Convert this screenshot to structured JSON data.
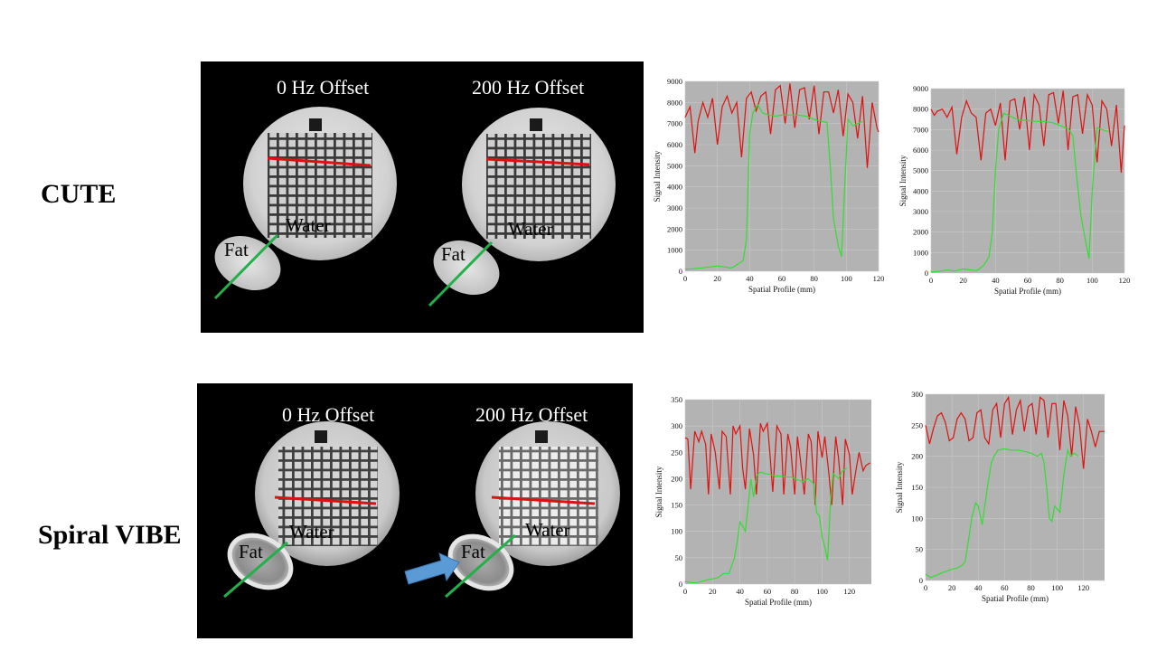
{
  "rows": [
    {
      "label": "CUTE",
      "left_caption": "0 Hz Offset",
      "right_caption": "200 Hz Offset",
      "water_label": "Water",
      "fat_label": "Fat"
    },
    {
      "label": "Spiral VIBE",
      "left_caption": "0 Hz Offset",
      "right_caption": "200 Hz Offset",
      "water_label": "Water",
      "fat_label": "Fat"
    }
  ],
  "colors": {
    "red_profile": "#e01010",
    "green_profile": "#22c522",
    "plot_background": "#b3b3b3",
    "arrow": "#5b9bd5"
  },
  "chart_data": [
    {
      "type": "line",
      "title": "",
      "xlabel": "Spatial Profile (mm)",
      "ylabel": "Signal Intensity",
      "xlim": [
        0,
        120
      ],
      "ylim": [
        0,
        9000
      ],
      "xticks": [
        0,
        20,
        40,
        60,
        80,
        100,
        120
      ],
      "yticks": [
        0,
        1000,
        2000,
        3000,
        4000,
        5000,
        6000,
        7000,
        8000,
        9000
      ],
      "grid": true,
      "series": [
        {
          "name": "red",
          "color": "#e01010",
          "x": [
            0,
            3,
            6,
            8,
            11,
            14,
            17,
            20,
            23,
            26,
            29,
            32,
            35,
            38,
            41,
            44,
            47,
            50,
            53,
            56,
            59,
            62,
            65,
            68,
            71,
            74,
            77,
            80,
            83,
            86,
            89,
            92,
            95,
            98,
            101,
            104,
            107,
            110,
            113,
            116,
            119,
            120
          ],
          "y": [
            7300,
            7800,
            5600,
            7100,
            8000,
            7300,
            8200,
            6000,
            7800,
            8300,
            7500,
            8000,
            5400,
            8200,
            8500,
            7600,
            8300,
            8500,
            6500,
            8600,
            8800,
            7000,
            8900,
            6800,
            8600,
            8700,
            7200,
            8800,
            6500,
            8500,
            8500,
            7500,
            8600,
            6400,
            8400,
            8000,
            6300,
            8300,
            4900,
            8000,
            6800,
            6600
          ]
        },
        {
          "name": "green",
          "color": "#33dd33",
          "x": [
            0,
            5,
            10,
            15,
            20,
            25,
            28,
            30,
            33,
            36,
            38,
            40,
            42,
            45,
            48,
            52,
            56,
            60,
            65,
            70,
            75,
            80,
            85,
            88,
            90,
            92,
            95,
            97,
            99,
            101,
            104,
            107,
            110
          ],
          "y": [
            100,
            120,
            150,
            200,
            250,
            200,
            150,
            200,
            350,
            500,
            1500,
            6500,
            7500,
            7900,
            7500,
            7400,
            7350,
            7400,
            7400,
            7400,
            7350,
            7200,
            7100,
            7050,
            5000,
            2500,
            1200,
            700,
            4000,
            7200,
            6900,
            7000,
            7100
          ]
        }
      ]
    },
    {
      "type": "line",
      "title": "",
      "xlabel": "Spatial Profile (mm)",
      "ylabel": "Signal Intensity",
      "xlim": [
        0,
        120
      ],
      "ylim": [
        0,
        9000
      ],
      "xticks": [
        0,
        20,
        40,
        60,
        80,
        100,
        120
      ],
      "yticks": [
        0,
        1000,
        2000,
        3000,
        4000,
        5000,
        6000,
        7000,
        8000,
        9000
      ],
      "grid": true,
      "series": [
        {
          "name": "red",
          "color": "#e01010",
          "x": [
            0,
            2,
            4,
            7,
            10,
            13,
            16,
            19,
            22,
            25,
            28,
            31,
            34,
            37,
            40,
            43,
            46,
            49,
            52,
            55,
            58,
            61,
            64,
            67,
            70,
            73,
            76,
            79,
            82,
            85,
            88,
            91,
            94,
            97,
            100,
            103,
            106,
            109,
            112,
            115,
            118,
            120
          ],
          "y": [
            8000,
            7700,
            7900,
            8000,
            7600,
            8100,
            5800,
            7600,
            8400,
            7800,
            7600,
            5500,
            7800,
            8000,
            7200,
            8300,
            5500,
            8400,
            8500,
            7000,
            8600,
            6000,
            8700,
            8200,
            6200,
            8700,
            8800,
            7300,
            8900,
            6000,
            8600,
            8700,
            6800,
            8700,
            8200,
            5400,
            8400,
            8000,
            6200,
            8200,
            4900,
            7200
          ]
        },
        {
          "name": "green",
          "color": "#33dd33",
          "x": [
            0,
            5,
            10,
            15,
            20,
            25,
            28,
            30,
            33,
            36,
            38,
            40,
            42,
            45,
            48,
            52,
            56,
            60,
            65,
            70,
            75,
            80,
            85,
            88,
            90,
            93,
            96,
            98,
            100,
            103,
            106,
            110
          ],
          "y": [
            50,
            80,
            150,
            100,
            200,
            150,
            120,
            200,
            400,
            800,
            2000,
            5000,
            7000,
            7800,
            7700,
            7550,
            7450,
            7450,
            7400,
            7400,
            7350,
            7200,
            7050,
            6700,
            5000,
            2800,
            1500,
            700,
            4000,
            7100,
            7000,
            6900
          ]
        }
      ]
    },
    {
      "type": "line",
      "title": "",
      "xlabel": "Spatial Profile (mm)",
      "ylabel": "Signal Intensity",
      "xlim": [
        0,
        136
      ],
      "ylim": [
        0,
        350
      ],
      "xticks": [
        0,
        20,
        40,
        60,
        80,
        100,
        120
      ],
      "yticks": [
        0,
        50,
        100,
        150,
        200,
        250,
        300,
        350
      ],
      "grid": true,
      "series": [
        {
          "name": "red",
          "color": "#e01010",
          "x": [
            0,
            2,
            4,
            7,
            10,
            12,
            15,
            17,
            19,
            22,
            25,
            27,
            30,
            33,
            35,
            37,
            40,
            42,
            44,
            47,
            50,
            52,
            55,
            57,
            60,
            62,
            64,
            67,
            70,
            72,
            75,
            77,
            80,
            82,
            84,
            87,
            90,
            92,
            95,
            97,
            100,
            102,
            105,
            107,
            110,
            112,
            115,
            117,
            120,
            122,
            125,
            127,
            130,
            132,
            135
          ],
          "y": [
            278,
            275,
            180,
            290,
            270,
            290,
            265,
            170,
            285,
            250,
            180,
            290,
            280,
            170,
            300,
            285,
            300,
            220,
            180,
            295,
            245,
            170,
            305,
            290,
            305,
            245,
            175,
            300,
            285,
            170,
            285,
            260,
            170,
            280,
            240,
            170,
            285,
            270,
            150,
            290,
            240,
            280,
            210,
            150,
            280,
            240,
            150,
            275,
            245,
            170,
            220,
            250,
            215,
            225,
            230
          ]
        },
        {
          "name": "green",
          "color": "#33dd33",
          "x": [
            0,
            4,
            8,
            12,
            16,
            20,
            24,
            28,
            32,
            36,
            38,
            40,
            42,
            44,
            46,
            48,
            50,
            52,
            55,
            58,
            62,
            66,
            70,
            74,
            78,
            82,
            86,
            90,
            94,
            96,
            98,
            100,
            102,
            104,
            106,
            108,
            110,
            112,
            115,
            118
          ],
          "y": [
            5,
            3,
            2,
            5,
            8,
            10,
            12,
            20,
            20,
            50,
            80,
            118,
            110,
            100,
            150,
            200,
            165,
            205,
            213,
            210,
            208,
            205,
            205,
            203,
            203,
            198,
            195,
            200,
            190,
            135,
            130,
            90,
            70,
            45,
            150,
            210,
            205,
            200,
            215,
            220
          ]
        }
      ]
    },
    {
      "type": "line",
      "title": "",
      "xlabel": "Spatial Profile (mm)",
      "ylabel": "Signal Intensity",
      "xlim": [
        0,
        136
      ],
      "ylim": [
        0,
        300
      ],
      "xticks": [
        0,
        20,
        40,
        60,
        80,
        100,
        120
      ],
      "yticks": [
        0,
        50,
        100,
        150,
        200,
        250,
        300
      ],
      "grid": true,
      "series": [
        {
          "name": "red",
          "color": "#e01010",
          "x": [
            0,
            3,
            6,
            9,
            12,
            15,
            18,
            21,
            24,
            27,
            30,
            33,
            36,
            39,
            42,
            45,
            48,
            51,
            54,
            57,
            60,
            63,
            66,
            69,
            72,
            75,
            78,
            81,
            84,
            87,
            90,
            93,
            96,
            99,
            102,
            105,
            108,
            111,
            114,
            117,
            120,
            123,
            126,
            129,
            132,
            136
          ],
          "y": [
            250,
            220,
            245,
            265,
            270,
            255,
            225,
            230,
            260,
            270,
            260,
            225,
            230,
            270,
            275,
            230,
            220,
            275,
            285,
            230,
            285,
            295,
            235,
            275,
            290,
            240,
            280,
            285,
            235,
            295,
            290,
            230,
            285,
            285,
            210,
            290,
            265,
            200,
            280,
            250,
            180,
            260,
            240,
            215,
            240,
            240
          ]
        },
        {
          "name": "green",
          "color": "#33dd33",
          "x": [
            0,
            4,
            8,
            12,
            16,
            20,
            24,
            28,
            30,
            33,
            35,
            38,
            40,
            43,
            45,
            47,
            50,
            52,
            55,
            60,
            65,
            70,
            75,
            80,
            85,
            88,
            90,
            92,
            94,
            96,
            98,
            100,
            102,
            105,
            108,
            110,
            113,
            116
          ],
          "y": [
            10,
            5,
            8,
            12,
            15,
            18,
            20,
            25,
            30,
            70,
            100,
            125,
            120,
            90,
            120,
            150,
            190,
            200,
            210,
            212,
            210,
            210,
            208,
            205,
            200,
            205,
            190,
            150,
            100,
            95,
            120,
            115,
            110,
            170,
            210,
            200,
            205,
            200
          ]
        }
      ]
    }
  ]
}
